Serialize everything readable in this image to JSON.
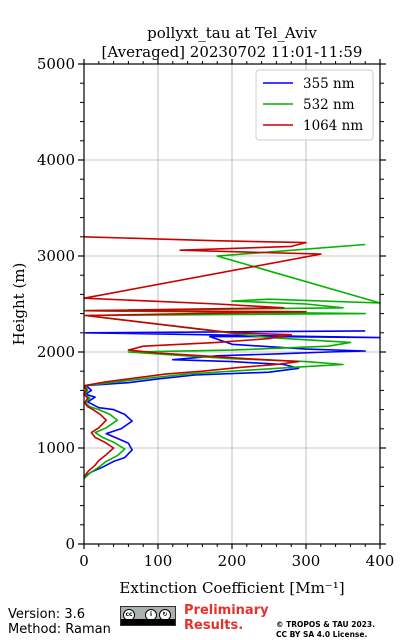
{
  "chart_data": {
    "type": "line",
    "title": "pollyxt_tau at Tel_Aviv",
    "subtitle": "[Averaged] 20230702 11:01-11:59",
    "xlabel": "Extinction Coefficient [Mm⁻¹]",
    "ylabel": "Height (m)",
    "xlim": [
      0,
      400
    ],
    "ylim": [
      0,
      5000
    ],
    "xticks": [
      "0",
      "100",
      "200",
      "300",
      "400"
    ],
    "yticks": [
      "0",
      "1000",
      "2000",
      "3000",
      "4000",
      "5000"
    ],
    "grid": true,
    "legend_position": "top-right",
    "series": [
      {
        "name": "355 nm",
        "color": "#0000ff",
        "x": [
          0,
          10,
          25,
          40,
          55,
          65,
          60,
          45,
          30,
          50,
          65,
          55,
          40,
          20,
          5,
          15,
          2,
          10,
          3,
          60,
          100,
          150,
          250,
          290,
          270,
          200,
          120,
          180,
          260,
          330,
          380,
          300,
          200,
          170,
          250,
          400,
          2,
          380
        ],
        "y": [
          700,
          750,
          800,
          860,
          900,
          980,
          1050,
          1100,
          1150,
          1200,
          1280,
          1350,
          1400,
          1420,
          1480,
          1530,
          1560,
          1600,
          1650,
          1680,
          1720,
          1760,
          1790,
          1830,
          1870,
          1900,
          1920,
          1960,
          1980,
          2000,
          2010,
          2030,
          2080,
          2160,
          2160,
          2150,
          2200,
          2220
        ]
      },
      {
        "name": "532 nm",
        "color": "#00b400",
        "x": [
          0,
          8,
          20,
          30,
          45,
          55,
          40,
          25,
          15,
          30,
          45,
          35,
          20,
          8,
          2,
          8,
          1,
          5,
          2,
          45,
          90,
          140,
          200,
          280,
          350,
          300,
          200,
          120,
          60,
          200,
          330,
          360,
          250,
          3,
          380,
          1,
          350,
          300,
          200,
          250,
          400,
          180,
          380
        ],
        "y": [
          680,
          740,
          800,
          860,
          920,
          990,
          1060,
          1110,
          1160,
          1210,
          1290,
          1350,
          1400,
          1430,
          1470,
          1520,
          1560,
          1600,
          1650,
          1690,
          1730,
          1770,
          1800,
          1840,
          1870,
          1900,
          1930,
          1970,
          2000,
          2020,
          2060,
          2100,
          2150,
          2380,
          2400,
          2430,
          2460,
          2500,
          2530,
          2550,
          2510,
          3000,
          3120
        ]
      },
      {
        "name": "1064 nm",
        "color": "#cc0000",
        "x": [
          0,
          6,
          15,
          20,
          30,
          40,
          28,
          15,
          10,
          20,
          30,
          22,
          12,
          5,
          1,
          5,
          0,
          3,
          1,
          30,
          70,
          110,
          160,
          210,
          260,
          290,
          220,
          160,
          100,
          60,
          80,
          180,
          250,
          280,
          200,
          2,
          300,
          3,
          270,
          180,
          90,
          0,
          320,
          130,
          280,
          300,
          170,
          0
        ],
        "y": [
          700,
          760,
          820,
          870,
          930,
          1000,
          1060,
          1110,
          1160,
          1210,
          1290,
          1350,
          1400,
          1430,
          1470,
          1520,
          1560,
          1600,
          1650,
          1690,
          1730,
          1770,
          1800,
          1840,
          1870,
          1900,
          1930,
          1960,
          1990,
          2020,
          2060,
          2100,
          2140,
          2180,
          2200,
          2380,
          2420,
          2430,
          2460,
          2500,
          2530,
          2560,
          3020,
          3060,
          3100,
          3140,
          3160,
          3200
        ]
      }
    ]
  },
  "footer": {
    "version": "Version: 3.6",
    "method": "Method: Raman",
    "preliminary_line1": "Preliminary",
    "preliminary_line2": "Results.",
    "copyright_line1": "© TROPOS & TAU 2023.",
    "copyright_line2": "CC BY SA 4.0 License.",
    "license_badge": "cc by sa",
    "preliminary_color": "#e8312d"
  }
}
